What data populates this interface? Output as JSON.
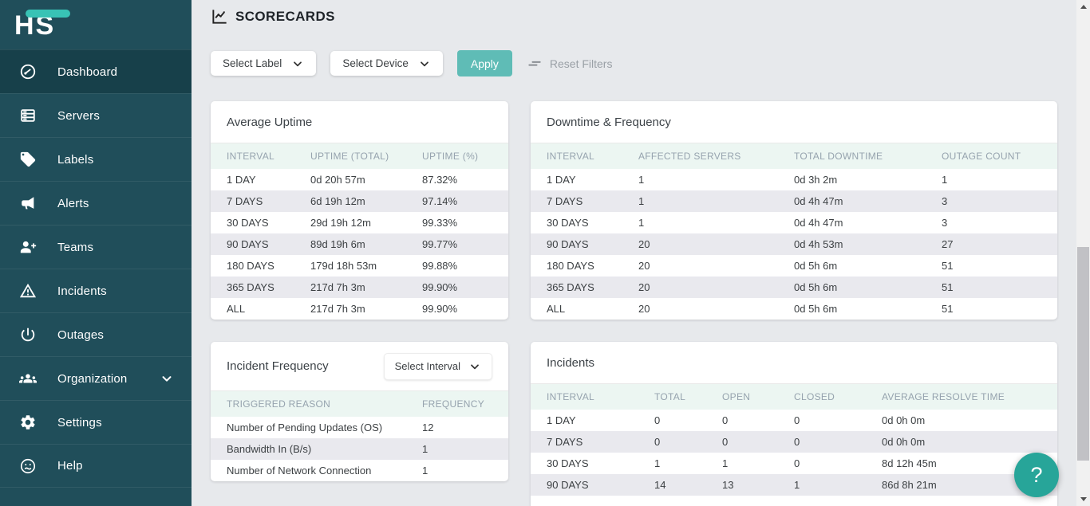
{
  "colors": {
    "sidebar_bg": "#204e5a",
    "sidebar_active_bg": "#17404a",
    "accent_teal": "#38c3b5",
    "apply_button": "#5fbcb6",
    "help_button": "#27a599",
    "table_head_bg": "#ecf6f2",
    "row_stripe": "#e9e9ee",
    "main_bg": "#e7e9ec"
  },
  "sidebar": {
    "logo_text": "HS",
    "items": [
      {
        "label": "Dashboard",
        "icon": "gauge-icon",
        "active": true
      },
      {
        "label": "Servers",
        "icon": "servers-icon"
      },
      {
        "label": "Labels",
        "icon": "tag-icon"
      },
      {
        "label": "Alerts",
        "icon": "megaphone-icon"
      },
      {
        "label": "Teams",
        "icon": "person-add-icon"
      },
      {
        "label": "Incidents",
        "icon": "warning-icon"
      },
      {
        "label": "Outages",
        "icon": "power-icon"
      },
      {
        "label": "Organization",
        "icon": "groups-icon",
        "expandable": true
      },
      {
        "label": "Settings",
        "icon": "gear-icon"
      },
      {
        "label": "Help",
        "icon": "help-face-icon"
      }
    ]
  },
  "header": {
    "title": "SCORECARDS",
    "icon": "line-chart-icon"
  },
  "filters": {
    "label_dropdown": "Select Label",
    "device_dropdown": "Select Device",
    "apply_label": "Apply",
    "reset_label": "Reset Filters",
    "reset_icon": "reset-filters-icon"
  },
  "cards": {
    "average_uptime": {
      "title": "Average Uptime",
      "columns": [
        "INTERVAL",
        "UPTIME (TOTAL)",
        "UPTIME (%)"
      ],
      "rows": [
        [
          "1 DAY",
          "0d 20h 57m",
          "87.32%"
        ],
        [
          "7 DAYS",
          "6d 19h 12m",
          "97.14%"
        ],
        [
          "30 DAYS",
          "29d 19h 12m",
          "99.33%"
        ],
        [
          "90 DAYS",
          "89d 19h 6m",
          "99.77%"
        ],
        [
          "180 DAYS",
          "179d 18h 53m",
          "99.88%"
        ],
        [
          "365 DAYS",
          "217d 7h 3m",
          "99.90%"
        ],
        [
          "ALL",
          "217d 7h 3m",
          "99.90%"
        ]
      ]
    },
    "downtime_frequency": {
      "title": "Downtime & Frequency",
      "columns": [
        "INTERVAL",
        "AFFECTED SERVERS",
        "TOTAL DOWNTIME",
        "OUTAGE COUNT"
      ],
      "rows": [
        [
          "1 DAY",
          "1",
          "0d 3h 2m",
          "1"
        ],
        [
          "7 DAYS",
          "1",
          "0d 4h 47m",
          "3"
        ],
        [
          "30 DAYS",
          "1",
          "0d 4h 47m",
          "3"
        ],
        [
          "90 DAYS",
          "20",
          "0d 4h 53m",
          "27"
        ],
        [
          "180 DAYS",
          "20",
          "0d 5h 6m",
          "51"
        ],
        [
          "365 DAYS",
          "20",
          "0d 5h 6m",
          "51"
        ],
        [
          "ALL",
          "20",
          "0d 5h 6m",
          "51"
        ]
      ]
    },
    "incident_frequency": {
      "title": "Incident Frequency",
      "interval_dropdown": "Select Interval",
      "columns": [
        "TRIGGERED REASON",
        "FREQUENCY"
      ],
      "rows": [
        [
          "Number of Pending Updates (OS)",
          "12"
        ],
        [
          "Bandwidth In (B/s)",
          "1"
        ],
        [
          "Number of Network Connection",
          "1"
        ]
      ]
    },
    "incidents": {
      "title": "Incidents",
      "columns": [
        "INTERVAL",
        "TOTAL",
        "OPEN",
        "CLOSED",
        "AVERAGE RESOLVE TIME"
      ],
      "rows": [
        [
          "1 DAY",
          "0",
          "0",
          "0",
          "0d 0h 0m"
        ],
        [
          "7 DAYS",
          "0",
          "0",
          "0",
          "0d 0h 0m"
        ],
        [
          "30 DAYS",
          "1",
          "1",
          "0",
          "8d 12h 45m"
        ],
        [
          "90 DAYS",
          "14",
          "13",
          "1",
          "86d 8h 21m"
        ]
      ]
    }
  },
  "help_button": {
    "label": "?"
  }
}
